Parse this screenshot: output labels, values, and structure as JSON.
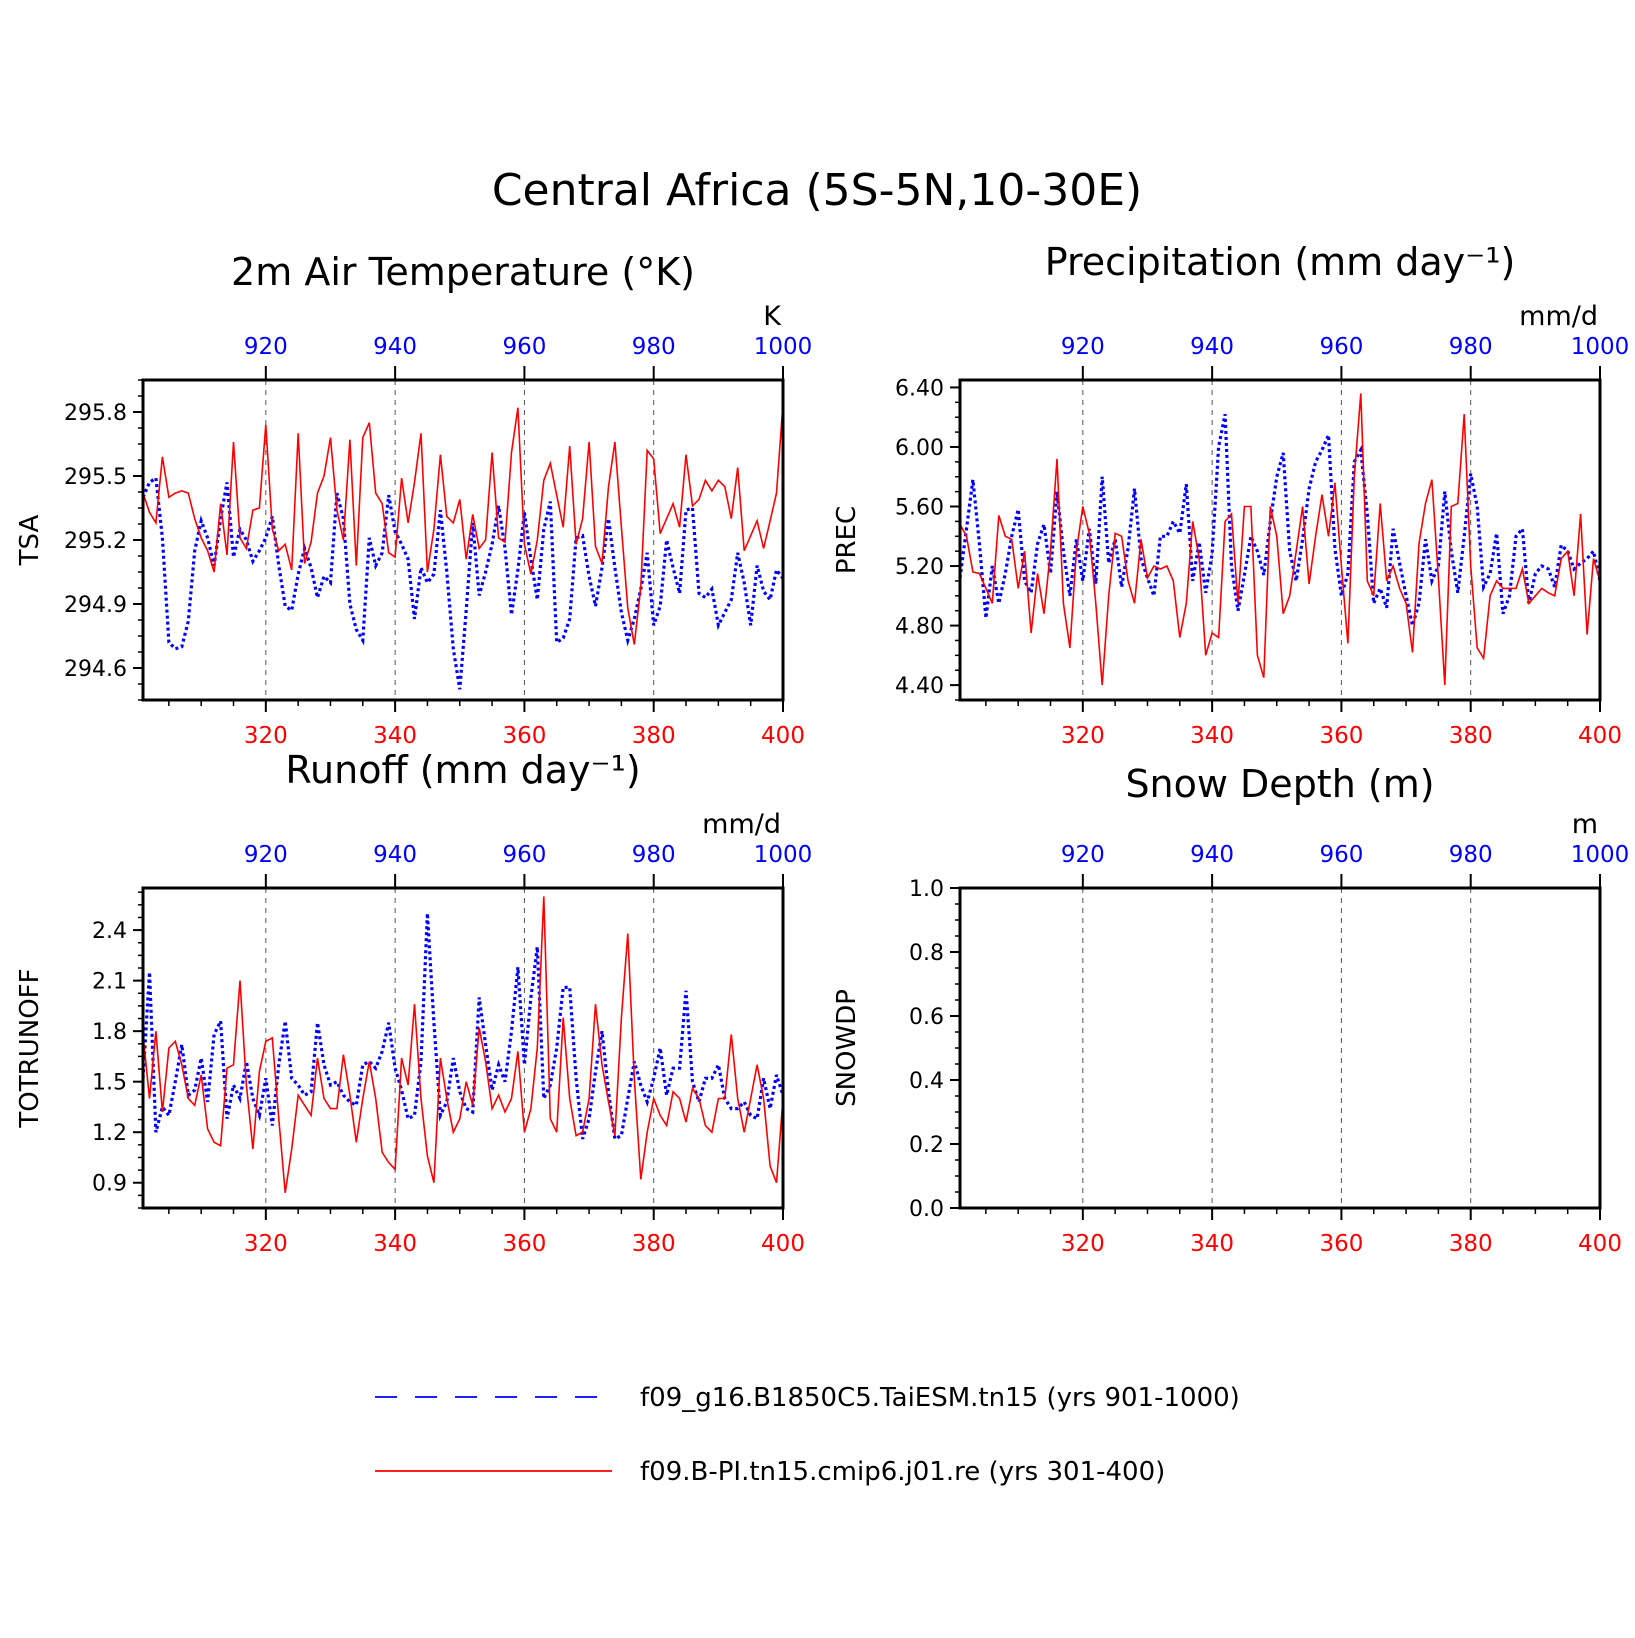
{
  "title": "Central Africa (5S-5N,10-30E)",
  "legend": [
    {
      "label": "f09_g16.B1850C5.TaiESM.tn15 (yrs 901-1000)",
      "color": "#0000ff",
      "style": "dashed"
    },
    {
      "label": "f09.B-PI.tn15.cmip6.j01.re (yrs 301-400)",
      "color": "#ff0000",
      "style": "solid"
    }
  ],
  "chart_data": [
    {
      "type": "line",
      "title": "2m Air Temperature (°K)",
      "ylabel": "TSA",
      "unit": "K",
      "ylim": [
        294.45,
        295.95
      ],
      "yticks": [
        "295.8",
        "295.5",
        "295.2",
        "294.9",
        "294.6"
      ],
      "x_bottom": {
        "range": [
          301,
          400
        ],
        "ticks": [
          320,
          340,
          360,
          380,
          400
        ],
        "color": "#ff0000"
      },
      "x_top": {
        "range": [
          901,
          1000
        ],
        "ticks": [
          920,
          940,
          960,
          980,
          1000
        ],
        "color": "#0000ff"
      },
      "series": [
        {
          "color": "#0000ff",
          "style": "dotted",
          "values": [
            295.4,
            295.47,
            295.49,
            295.21,
            294.72,
            294.69,
            294.7,
            294.82,
            295.15,
            295.29,
            295.21,
            295.08,
            295.3,
            295.47,
            295.12,
            295.25,
            295.2,
            295.1,
            295.15,
            295.21,
            295.31,
            295.08,
            294.89,
            294.87,
            295.04,
            295.16,
            295.07,
            294.93,
            295.03,
            295.0,
            295.42,
            295.3,
            294.9,
            294.78,
            294.73,
            295.21,
            295.08,
            295.14,
            295.41,
            295.24,
            295.18,
            295.11,
            294.83,
            295.07,
            295.0,
            295.04,
            295.34,
            295.05,
            294.69,
            294.5,
            294.87,
            295.28,
            294.94,
            295.05,
            295.18,
            295.36,
            295.16,
            294.85,
            295.06,
            295.33,
            295.11,
            294.92,
            295.25,
            295.38,
            294.72,
            294.74,
            294.83,
            295.21,
            295.22,
            295.03,
            294.89,
            295.07,
            295.3,
            295.07,
            294.86,
            294.73,
            294.83,
            294.97,
            295.14,
            294.8,
            294.89,
            295.2,
            295.07,
            294.95,
            295.34,
            295.35,
            294.95,
            294.93,
            294.97,
            294.8,
            294.86,
            294.92,
            295.14,
            295.0,
            294.8,
            295.08,
            294.96,
            294.92,
            295.06,
            295.02
          ]
        },
        {
          "color": "#ff0000",
          "style": "solid",
          "values": [
            295.42,
            295.33,
            295.28,
            295.59,
            295.4,
            295.42,
            295.43,
            295.42,
            295.3,
            295.21,
            295.15,
            295.05,
            295.37,
            295.13,
            295.66,
            295.21,
            295.16,
            295.34,
            295.35,
            295.74,
            295.25,
            295.15,
            295.18,
            295.06,
            295.7,
            295.09,
            295.19,
            295.42,
            295.5,
            295.68,
            295.34,
            295.2,
            295.67,
            295.08,
            295.68,
            295.75,
            295.42,
            295.37,
            295.14,
            295.12,
            295.49,
            295.28,
            295.47,
            295.7,
            295.05,
            295.25,
            295.6,
            295.31,
            295.28,
            295.39,
            295.11,
            295.32,
            295.16,
            295.2,
            295.61,
            295.21,
            295.19,
            295.61,
            295.82,
            295.18,
            295.04,
            295.2,
            295.48,
            295.56,
            295.41,
            295.26,
            295.64,
            295.18,
            295.3,
            295.66,
            295.17,
            295.09,
            295.45,
            295.66,
            295.26,
            294.88,
            294.71,
            294.98,
            295.62,
            295.58,
            295.23,
            295.3,
            295.37,
            295.26,
            295.6,
            295.36,
            295.39,
            295.48,
            295.43,
            295.48,
            295.45,
            295.3,
            295.54,
            295.15,
            295.22,
            295.29,
            295.16,
            295.29,
            295.42,
            295.84
          ]
        }
      ]
    },
    {
      "type": "line",
      "title": "Precipitation (mm day⁻¹)",
      "ylabel": "PREC",
      "unit": "mm/d",
      "ylim": [
        4.3,
        6.45
      ],
      "yticks": [
        "6.40",
        "6.00",
        "5.60",
        "5.20",
        "4.80",
        "4.40"
      ],
      "x_bottom": {
        "range": [
          301,
          400
        ],
        "ticks": [
          320,
          340,
          360,
          380,
          400
        ],
        "color": "#ff0000"
      },
      "x_top": {
        "range": [
          901,
          1000
        ],
        "ticks": [
          920,
          940,
          960,
          980,
          1000
        ],
        "color": "#0000ff"
      },
      "series": [
        {
          "color": "#0000ff",
          "style": "dotted",
          "values": [
            5.12,
            5.45,
            5.78,
            5.35,
            4.85,
            5.2,
            4.95,
            5.15,
            5.4,
            5.58,
            5.1,
            5.02,
            5.35,
            5.48,
            5.15,
            5.7,
            5.3,
            5.0,
            5.38,
            5.1,
            5.45,
            5.08,
            5.8,
            5.22,
            5.38,
            5.06,
            5.32,
            5.72,
            5.25,
            5.12,
            5.0,
            5.4,
            5.4,
            5.5,
            5.42,
            5.75,
            5.1,
            5.36,
            5.02,
            5.28,
            6.0,
            6.22,
            5.2,
            4.9,
            5.14,
            5.4,
            5.3,
            5.14,
            5.5,
            5.8,
            5.96,
            5.3,
            5.1,
            5.38,
            5.72,
            5.9,
            5.98,
            6.08,
            5.32,
            5.0,
            5.15,
            5.9,
            5.98,
            5.55,
            4.95,
            5.05,
            4.92,
            5.45,
            5.22,
            5.0,
            4.8,
            4.95,
            5.38,
            5.1,
            5.2,
            5.7,
            5.3,
            5.02,
            5.4,
            5.82,
            5.6,
            5.06,
            5.15,
            5.42,
            4.88,
            5.0,
            5.4,
            5.45,
            4.95,
            5.15,
            5.2,
            5.18,
            5.06,
            5.34,
            5.3,
            5.18,
            5.22,
            5.25,
            5.3,
            5.1
          ]
        },
        {
          "color": "#ff0000",
          "style": "solid",
          "values": [
            5.48,
            5.4,
            5.16,
            5.15,
            5.05,
            4.95,
            5.54,
            5.4,
            5.38,
            5.05,
            5.3,
            4.75,
            5.15,
            4.88,
            5.3,
            5.92,
            4.95,
            4.65,
            5.3,
            5.6,
            5.42,
            4.95,
            4.4,
            5.0,
            5.42,
            5.4,
            5.1,
            4.95,
            5.38,
            5.12,
            5.2,
            5.18,
            5.2,
            5.1,
            4.72,
            4.95,
            5.5,
            5.25,
            4.6,
            4.75,
            4.72,
            5.5,
            5.55,
            4.95,
            5.6,
            5.6,
            4.6,
            4.45,
            5.6,
            5.4,
            4.88,
            5.0,
            5.3,
            5.6,
            5.08,
            5.4,
            5.68,
            5.4,
            5.76,
            5.2,
            4.68,
            5.8,
            6.36,
            5.1,
            5.0,
            5.62,
            5.1,
            5.2,
            5.05,
            4.95,
            4.62,
            5.35,
            5.62,
            5.78,
            5.12,
            4.4,
            5.6,
            5.62,
            6.22,
            5.2,
            4.65,
            4.58,
            5.0,
            5.1,
            5.05,
            5.05,
            5.05,
            5.18,
            4.95,
            5.0,
            5.05,
            5.02,
            5.0,
            5.25,
            5.3,
            5.0,
            5.55,
            4.74,
            5.25,
            5.1
          ]
        }
      ]
    },
    {
      "type": "line",
      "title": "Runoff (mm day⁻¹)",
      "ylabel": "TOTRUNOFF",
      "unit": "mm/d",
      "ylim": [
        0.75,
        2.65
      ],
      "yticks": [
        "2.4",
        "2.1",
        "1.8",
        "1.5",
        "1.2",
        "0.9"
      ],
      "x_bottom": {
        "range": [
          301,
          400
        ],
        "ticks": [
          320,
          340,
          360,
          380,
          400
        ],
        "color": "#ff0000"
      },
      "x_top": {
        "range": [
          901,
          1000
        ],
        "ticks": [
          920,
          940,
          960,
          980,
          1000
        ],
        "color": "#0000ff"
      },
      "series": [
        {
          "color": "#0000ff",
          "style": "dotted",
          "values": [
            1.52,
            2.15,
            1.2,
            1.35,
            1.3,
            1.5,
            1.72,
            1.42,
            1.45,
            1.64,
            1.38,
            1.78,
            1.86,
            1.28,
            1.48,
            1.4,
            1.62,
            1.4,
            1.3,
            1.52,
            1.24,
            1.6,
            1.86,
            1.52,
            1.48,
            1.42,
            1.44,
            1.85,
            1.6,
            1.48,
            1.5,
            1.42,
            1.38,
            1.36,
            1.6,
            1.62,
            1.58,
            1.68,
            1.85,
            1.58,
            1.45,
            1.28,
            1.3,
            1.62,
            2.5,
            1.85,
            1.3,
            1.38,
            1.64,
            1.44,
            1.34,
            1.32,
            2.0,
            1.72,
            1.45,
            1.6,
            1.5,
            1.8,
            2.18,
            1.6,
            2.0,
            2.3,
            1.4,
            1.48,
            1.7,
            2.06,
            2.06,
            1.52,
            1.16,
            1.28,
            1.56,
            1.8,
            1.44,
            1.16,
            1.18,
            1.4,
            1.62,
            1.48,
            1.38,
            1.52,
            1.7,
            1.42,
            1.58,
            1.58,
            2.04,
            1.5,
            1.38,
            1.52,
            1.52,
            1.6,
            1.4,
            1.34,
            1.34,
            1.38,
            1.3,
            1.28,
            1.52,
            1.34,
            1.54,
            1.42
          ]
        },
        {
          "color": "#ff0000",
          "style": "solid",
          "values": [
            1.78,
            1.4,
            1.8,
            1.32,
            1.7,
            1.74,
            1.6,
            1.4,
            1.36,
            1.54,
            1.22,
            1.14,
            1.12,
            1.58,
            1.6,
            2.1,
            1.48,
            1.1,
            1.56,
            1.74,
            1.76,
            1.28,
            0.84,
            1.1,
            1.42,
            1.36,
            1.3,
            1.64,
            1.4,
            1.34,
            1.34,
            1.66,
            1.42,
            1.14,
            1.4,
            1.62,
            1.4,
            1.08,
            1.02,
            0.98,
            1.64,
            1.48,
            1.96,
            1.4,
            1.06,
            0.9,
            1.64,
            1.4,
            1.2,
            1.28,
            1.5,
            1.36,
            1.82,
            1.62,
            1.34,
            1.42,
            1.32,
            1.4,
            1.68,
            1.2,
            1.34,
            1.7,
            2.6,
            1.28,
            1.2,
            1.88,
            1.4,
            1.18,
            1.2,
            1.4,
            1.96,
            1.6,
            1.38,
            1.18,
            1.88,
            2.38,
            1.52,
            0.92,
            1.2,
            1.4,
            1.3,
            1.24,
            1.44,
            1.4,
            1.26,
            1.46,
            1.4,
            1.24,
            1.2,
            1.4,
            1.4,
            1.78,
            1.4,
            1.2,
            1.4,
            1.6,
            1.4,
            1.0,
            0.9,
            1.4
          ]
        }
      ]
    },
    {
      "type": "line",
      "title": "Snow Depth (m)",
      "ylabel": "SNOWDP",
      "unit": "m",
      "ylim": [
        0.0,
        1.0
      ],
      "yticks": [
        "1.0",
        "0.8",
        "0.6",
        "0.4",
        "0.2",
        "0.0"
      ],
      "x_bottom": {
        "range": [
          301,
          400
        ],
        "ticks": [
          320,
          340,
          360,
          380,
          400
        ],
        "color": "#ff0000"
      },
      "x_top": {
        "range": [
          901,
          1000
        ],
        "ticks": [
          920,
          940,
          960,
          980,
          1000
        ],
        "color": "#0000ff"
      },
      "series": []
    }
  ]
}
